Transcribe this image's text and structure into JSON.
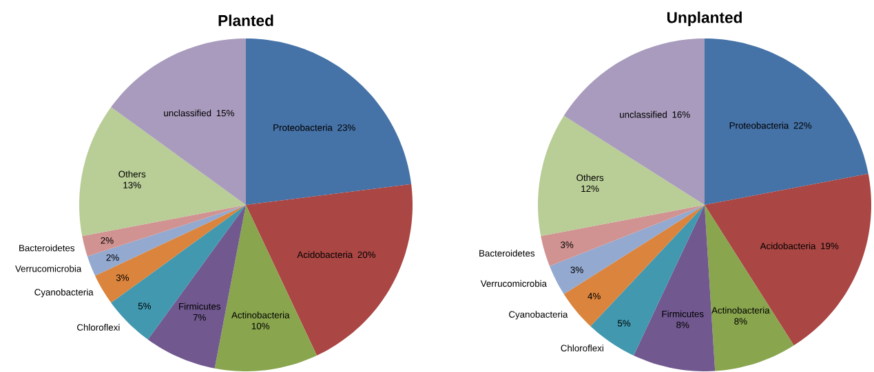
{
  "chart_data": [
    {
      "type": "pie",
      "title": "Planted",
      "categories": [
        "Proteobacteria",
        "Acidobacteria",
        "Actinobacteria",
        "Firmicutes",
        "Chloroflexi",
        "Cyanobacteria",
        "Verrucomicrobia",
        "Bacteroidetes",
        "Others",
        "unclassified"
      ],
      "values": [
        23,
        20,
        10,
        7,
        5,
        3,
        2,
        2,
        13,
        15
      ],
      "value_labels": [
        "23%",
        "20%",
        "10%",
        "7%",
        "5%",
        "3%",
        "2%",
        "2%",
        "13%",
        "15%"
      ],
      "colors": [
        "#4572a7",
        "#aa4643",
        "#89a54e",
        "#71588f",
        "#4198af",
        "#db843d",
        "#93a9cf",
        "#d19392",
        "#b9cd96",
        "#a99bbd"
      ]
    },
    {
      "type": "pie",
      "title": "Unplanted",
      "categories": [
        "Proteobacteria",
        "Acidobacteria",
        "Actinobacteria",
        "Firmicutes",
        "Chloroflexi",
        "Cyanobacteria",
        "Verrucomicrobia",
        "Bacteroidetes",
        "Others",
        "unclassified"
      ],
      "values": [
        22,
        19,
        8,
        8,
        5,
        4,
        3,
        3,
        12,
        16
      ],
      "value_labels": [
        "22%",
        "19%",
        "8%",
        "8%",
        "5%",
        "4%",
        "3%",
        "3%",
        "12%",
        "16%"
      ],
      "colors": [
        "#4572a7",
        "#aa4643",
        "#89a54e",
        "#71588f",
        "#4198af",
        "#db843d",
        "#93a9cf",
        "#d19392",
        "#b9cd96",
        "#a99bbd"
      ]
    }
  ]
}
